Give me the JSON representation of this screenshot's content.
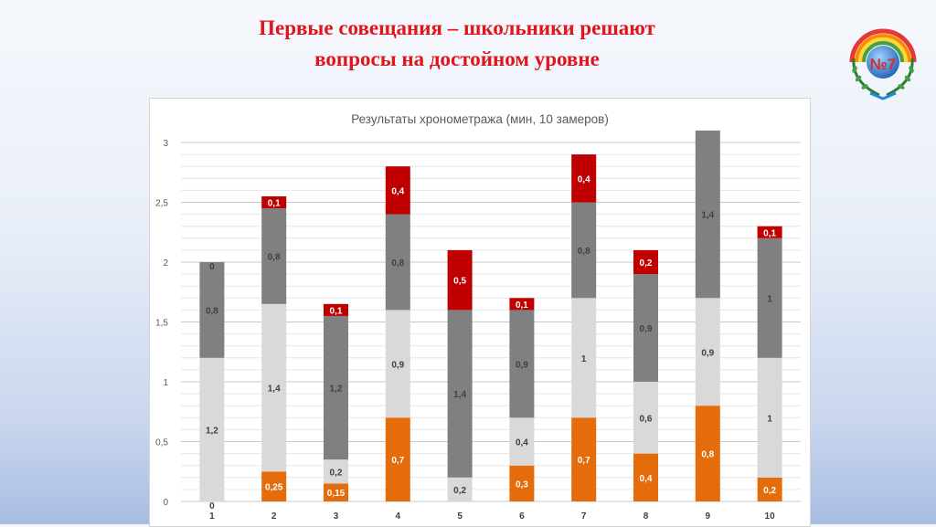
{
  "slide": {
    "title_line1": "Первые совещания – школьники решают",
    "title_line2": "вопросы на достойном уровне",
    "logo": {
      "icon": "school-emblem-icon",
      "text": "№7"
    }
  },
  "colors": {
    "title": "#e0151c",
    "orange": "#e46c0a",
    "light_gray": "#d9d9d9",
    "dark_gray": "#808080",
    "red": "#c00000",
    "grid": "#d9d9d9"
  },
  "chart_data": {
    "type": "bar",
    "stacked": true,
    "title": "Результаты хронометража (мин, 10 замеров)",
    "xlabel": "",
    "ylabel": "",
    "ylim": [
      0,
      3
    ],
    "yticks": [
      "0",
      "0,5",
      "1",
      "1,5",
      "2",
      "2,5",
      "3"
    ],
    "grid": true,
    "legend": "none",
    "categories": [
      "1",
      "2",
      "3",
      "4",
      "5",
      "6",
      "7",
      "8",
      "9",
      "10"
    ],
    "series": [
      {
        "color": "#e46c0a",
        "values": [
          0,
          0.25,
          0.15,
          0.7,
          0,
          0.3,
          0.7,
          0.4,
          0.8,
          0.2
        ],
        "labels": [
          "0",
          "0,25",
          "0,15",
          "0,7",
          "",
          "0,3",
          "0,7",
          "0,4",
          "0,8",
          "0,2"
        ]
      },
      {
        "color": "#d9d9d9",
        "values": [
          1.2,
          1.4,
          0.2,
          0.9,
          0.2,
          0.4,
          1,
          0.6,
          0.9,
          1
        ],
        "labels": [
          "1,2",
          "1,4",
          "0,2",
          "0,9",
          "0,2",
          "0,4",
          "1",
          "0,6",
          "0,9",
          "1"
        ]
      },
      {
        "color": "#808080",
        "values": [
          0.8,
          0.8,
          1.2,
          0.8,
          1.4,
          0.9,
          0.8,
          0.9,
          1.4,
          1
        ],
        "labels": [
          "0,8",
          "0,8",
          "1,2",
          "0,8",
          "1,4",
          "0,9",
          "0,8",
          "0,9",
          "1,4",
          "1"
        ]
      },
      {
        "color": "#c00000",
        "values": [
          0,
          0.1,
          0.1,
          0.4,
          0.5,
          0.1,
          0.4,
          0.2,
          0,
          0.1
        ],
        "labels": [
          "0",
          "0,1",
          "0,1",
          "0,4",
          "0,5",
          "0,1",
          "0,4",
          "0,2",
          "",
          "0,1"
        ]
      }
    ]
  }
}
